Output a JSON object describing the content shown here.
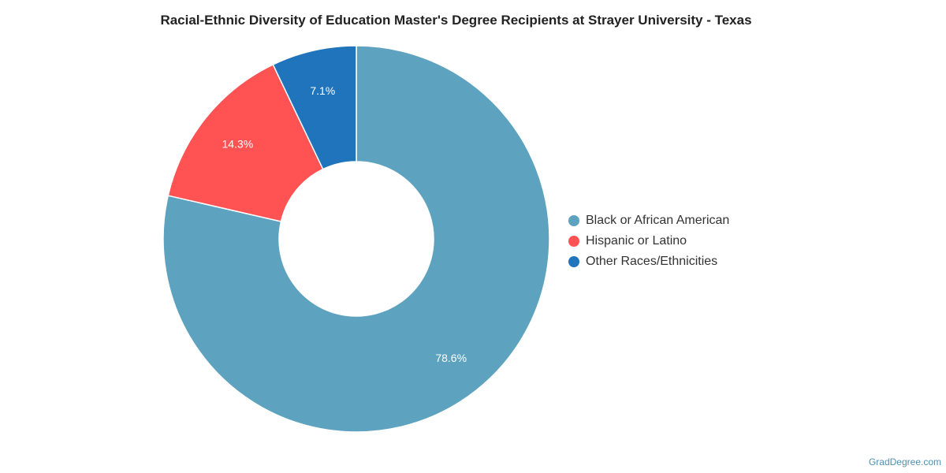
{
  "chart_data": {
    "type": "pie",
    "title": "Racial-Ethnic Diversity of Education Master's Degree Recipients at Strayer University - Texas",
    "categories": [
      "Black or African American",
      "Hispanic or Latino",
      "Other Races/Ethnicities"
    ],
    "values": [
      78.6,
      14.3,
      7.1
    ],
    "data_labels": [
      "78.6%",
      "14.3%",
      "7.1%"
    ],
    "colors": [
      "#5da2bf",
      "#fe5253",
      "#1f74bb"
    ],
    "donut": true,
    "legend_placement": "right"
  },
  "credit": "GradDegree.com"
}
